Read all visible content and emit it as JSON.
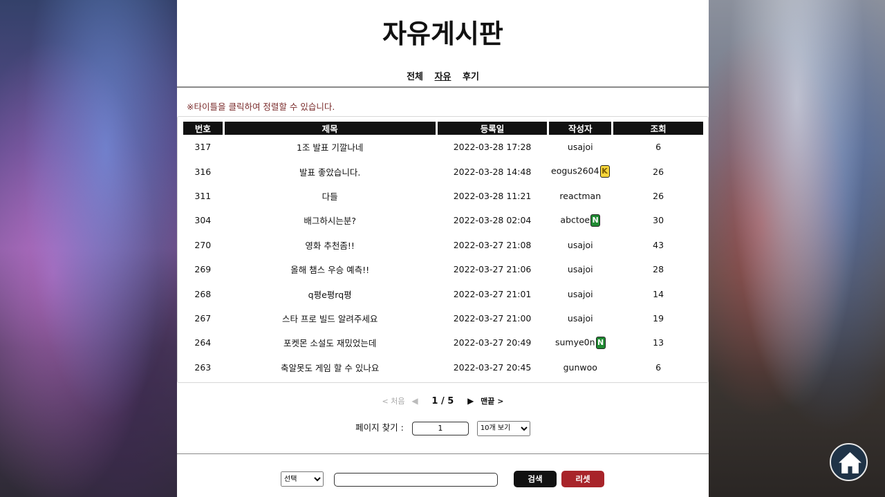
{
  "page": {
    "title": "자유게시판"
  },
  "tabs": [
    {
      "label": "전체",
      "active": false
    },
    {
      "label": "자유",
      "active": true
    },
    {
      "label": "후기",
      "active": false
    }
  ],
  "notice": "※타이틀을 클릭하여 정렬할 수 있습니다.",
  "table": {
    "headers": [
      "번호",
      "제목",
      "등록일",
      "작성자",
      "조회"
    ],
    "rows": [
      {
        "no": "317",
        "title": "1조 발표 기깔나네",
        "date": "2022-03-28 17:28",
        "author": "usajoi",
        "badge": "",
        "views": "6"
      },
      {
        "no": "316",
        "title": "발표 좋았습니다.",
        "date": "2022-03-28 14:48",
        "author": "eogus2604",
        "badge": "K",
        "views": "26"
      },
      {
        "no": "311",
        "title": "다들",
        "date": "2022-03-28 11:21",
        "author": "reactman",
        "badge": "",
        "views": "26"
      },
      {
        "no": "304",
        "title": "배그하시는분?",
        "date": "2022-03-28 02:04",
        "author": "abctoe",
        "badge": "N",
        "views": "30"
      },
      {
        "no": "270",
        "title": "영화 추천좀!!",
        "date": "2022-03-27 21:08",
        "author": "usajoi",
        "badge": "",
        "views": "43"
      },
      {
        "no": "269",
        "title": "올해 챔스 우승 예측!!",
        "date": "2022-03-27 21:06",
        "author": "usajoi",
        "badge": "",
        "views": "28"
      },
      {
        "no": "268",
        "title": "q평e평rq평",
        "date": "2022-03-27 21:01",
        "author": "usajoi",
        "badge": "",
        "views": "14"
      },
      {
        "no": "267",
        "title": "스타 프로 빌드 알려주세요",
        "date": "2022-03-27 21:00",
        "author": "usajoi",
        "badge": "",
        "views": "19"
      },
      {
        "no": "264",
        "title": "포켓몬 소설도 재밌었는데",
        "date": "2022-03-27 20:49",
        "author": "sumye0n",
        "badge": "N",
        "views": "13"
      },
      {
        "no": "263",
        "title": "축알못도 게임 할 수 있나요",
        "date": "2022-03-27 20:45",
        "author": "gunwoo",
        "badge": "",
        "views": "6"
      }
    ]
  },
  "pager": {
    "first": "< 처음",
    "prev": "◀",
    "current": "1 / 5",
    "next": "▶",
    "last": "맨끝 >"
  },
  "page_find": {
    "label": "페이지 찾기 :",
    "value": "1",
    "per_page_selected": "10개 보기"
  },
  "search": {
    "select_value": "선택",
    "input_value": "",
    "search_label": "검색",
    "reset_label": "리셋"
  },
  "colors": {
    "header_bg": "#111111",
    "notice": "#7a2b2b",
    "reset": "#a8242a",
    "badge_K": "#f5d53a",
    "badge_N": "#1f8a32"
  },
  "icons": {
    "home": "home-icon"
  }
}
